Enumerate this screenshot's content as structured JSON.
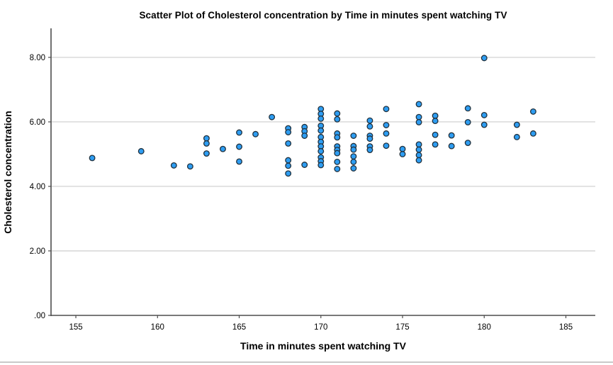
{
  "chart_data": {
    "type": "scatter",
    "title": "Scatter Plot of Cholesterol concentration by Time in minutes spent watching TV",
    "xlabel": "Time in minutes spent watching TV",
    "ylabel": "Cholesterol concentration",
    "xlim": [
      153.48,
      186.8
    ],
    "ylim": [
      0,
      8.9
    ],
    "grid": "horizontal-light-gray",
    "legend": "none",
    "x_ticks": [
      {
        "label": "155",
        "v": 155
      },
      {
        "label": "160",
        "v": 160
      },
      {
        "label": "165",
        "v": 165
      },
      {
        "label": "170",
        "v": 170
      },
      {
        "label": "175",
        "v": 175
      },
      {
        "label": "180",
        "v": 180
      },
      {
        "label": "185",
        "v": 185
      }
    ],
    "y_ticks": [
      {
        "label": ".00",
        "v": 0
      },
      {
        "label": "2.00",
        "v": 2
      },
      {
        "label": "4.00",
        "v": 4
      },
      {
        "label": "6.00",
        "v": 6
      },
      {
        "label": "8.00",
        "v": 8
      }
    ],
    "marker": {
      "shape": "circle",
      "fill": "#2e9df2",
      "stroke": "#20303c",
      "radius": 3.8,
      "stroke_width": 1.3
    },
    "axis_color": "#4d4d4d",
    "grid_color": "#d6d6d6",
    "points": [
      [
        156,
        4.88
      ],
      [
        159,
        5.09
      ],
      [
        161,
        4.65
      ],
      [
        162,
        4.62
      ],
      [
        163,
        5.49
      ],
      [
        163,
        5.33
      ],
      [
        163,
        5.02
      ],
      [
        164,
        5.16
      ],
      [
        165,
        5.67
      ],
      [
        165,
        5.23
      ],
      [
        165,
        4.77
      ],
      [
        166,
        5.62
      ],
      [
        167,
        6.15
      ],
      [
        168,
        5.8
      ],
      [
        168,
        5.68
      ],
      [
        168,
        5.33
      ],
      [
        168,
        4.81
      ],
      [
        168,
        4.64
      ],
      [
        168,
        4.4
      ],
      [
        169,
        5.84
      ],
      [
        169,
        5.71
      ],
      [
        169,
        5.57
      ],
      [
        169,
        4.67
      ],
      [
        170,
        6.4
      ],
      [
        170,
        6.25
      ],
      [
        170,
        6.1
      ],
      [
        170,
        5.88
      ],
      [
        170,
        5.73
      ],
      [
        170,
        5.53
      ],
      [
        170,
        5.38
      ],
      [
        170,
        5.24
      ],
      [
        170,
        5.09
      ],
      [
        170,
        4.9
      ],
      [
        170,
        4.78
      ],
      [
        170,
        4.66
      ],
      [
        171,
        6.26
      ],
      [
        171,
        6.08
      ],
      [
        171,
        5.64
      ],
      [
        171,
        5.52
      ],
      [
        171,
        5.24
      ],
      [
        171,
        5.13
      ],
      [
        171,
        5.03
      ],
      [
        171,
        4.76
      ],
      [
        171,
        4.54
      ],
      [
        172,
        5.57
      ],
      [
        172,
        5.25
      ],
      [
        172,
        5.14
      ],
      [
        172,
        4.93
      ],
      [
        172,
        4.76
      ],
      [
        172,
        4.56
      ],
      [
        173,
        6.04
      ],
      [
        173,
        5.86
      ],
      [
        173,
        5.57
      ],
      [
        173,
        5.48
      ],
      [
        173,
        5.24
      ],
      [
        173,
        5.13
      ],
      [
        174,
        6.4
      ],
      [
        174,
        5.9
      ],
      [
        174,
        5.64
      ],
      [
        174,
        5.26
      ],
      [
        175,
        5.16
      ],
      [
        175,
        5.0
      ],
      [
        176,
        6.55
      ],
      [
        176,
        6.15
      ],
      [
        176,
        5.99
      ],
      [
        176,
        5.3
      ],
      [
        176,
        5.14
      ],
      [
        176,
        4.97
      ],
      [
        176,
        4.81
      ],
      [
        177,
        6.19
      ],
      [
        177,
        6.03
      ],
      [
        177,
        5.6
      ],
      [
        177,
        5.3
      ],
      [
        178,
        5.58
      ],
      [
        178,
        5.25
      ],
      [
        179,
        6.42
      ],
      [
        179,
        5.99
      ],
      [
        179,
        5.35
      ],
      [
        180,
        7.98
      ],
      [
        180,
        6.21
      ],
      [
        180,
        5.91
      ],
      [
        182,
        5.91
      ],
      [
        182,
        5.53
      ],
      [
        183,
        6.32
      ],
      [
        183,
        5.64
      ]
    ]
  }
}
